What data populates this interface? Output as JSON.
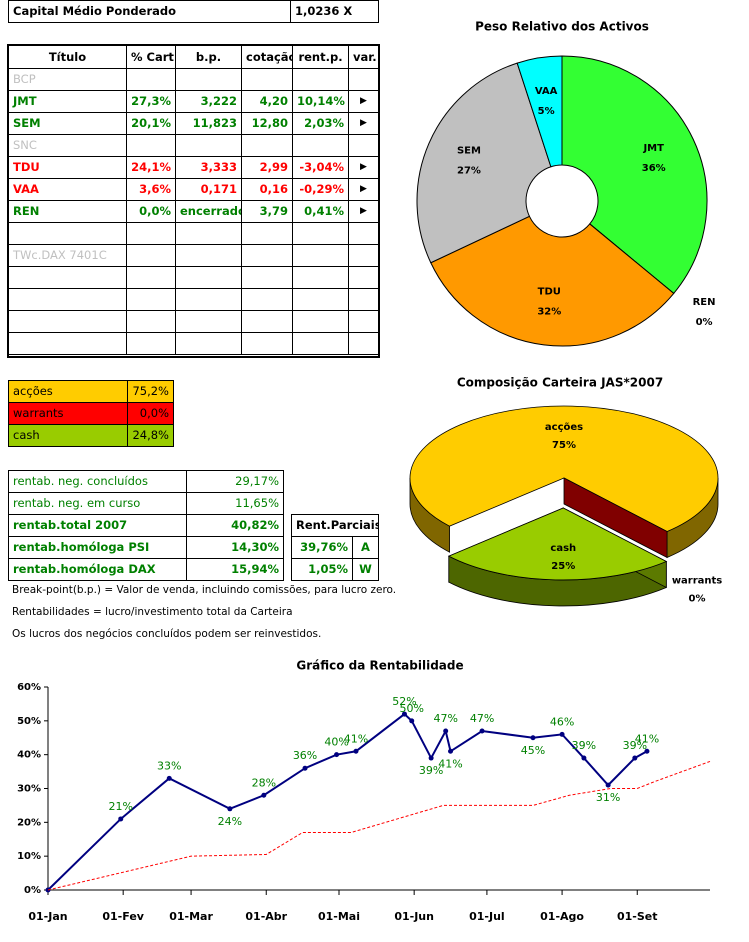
{
  "header": {
    "label": "Capital Médio Ponderado",
    "value": "1,0236 X"
  },
  "portfolio_table": {
    "columns": [
      "Título",
      "% Cart",
      "b.p.",
      "cotação",
      "rent.p.",
      "var."
    ],
    "rows": [
      {
        "cells": [
          "BCP"
        ],
        "color": "#c0c0c0"
      },
      {
        "cells": [
          "JMT",
          "27,3%",
          "3,222",
          "4,20",
          "10,14%",
          "▶"
        ],
        "color": "#008000"
      },
      {
        "cells": [
          "SEM",
          "20,1%",
          "11,823",
          "12,80",
          "2,03%",
          "▶"
        ],
        "color": "#008000"
      },
      {
        "cells": [
          "SNC"
        ],
        "color": "#c0c0c0"
      },
      {
        "cells": [
          "TDU",
          "24,1%",
          "3,333",
          "2,99",
          "-3,04%",
          "▶"
        ],
        "color": "#ff0000"
      },
      {
        "cells": [
          "VAA",
          "3,6%",
          "0,171",
          "0,16",
          "-0,29%",
          "▶"
        ],
        "color": "#ff0000"
      },
      {
        "cells": [
          "REN",
          "0,0%",
          "encerrado",
          "3,79",
          "0,41%",
          "▶"
        ],
        "color": "#008000"
      },
      {
        "cells": [
          "TWc.DAX 7401C"
        ],
        "color": "#c0c0c0"
      }
    ]
  },
  "allocation_table": {
    "rows": [
      {
        "cells": [
          "acções",
          "75,2%"
        ],
        "color": "#ffcc00"
      },
      {
        "cells": [
          "warrants",
          "0,0%"
        ],
        "color": "#ff0000"
      },
      {
        "cells": [
          "cash",
          "24,8%"
        ],
        "color": "#99cc00"
      }
    ]
  },
  "returns_table": {
    "color": "#008000",
    "rows": [
      {
        "cells": [
          "rentab. neg. concluídos",
          "29,17%"
        ],
        "bold": false
      },
      {
        "cells": [
          "rentab. neg. em curso",
          "11,65%"
        ],
        "bold": false
      },
      {
        "cells": [
          "rentab.total 2007",
          "40,82%"
        ],
        "bold": true
      },
      {
        "cells": [
          "rentab.homóloga PSI",
          "14,30%"
        ],
        "bold": true
      },
      {
        "cells": [
          "rentab.homóloga DAX",
          "15,94%"
        ],
        "bold": true
      }
    ]
  },
  "partial_returns_table": {
    "header": "Rent.Parciais",
    "color": "#008000",
    "rows": [
      [
        "39,76%",
        "A"
      ],
      [
        "1,05%",
        "W"
      ]
    ]
  },
  "notes": [
    "Break-point(b.p.) = Valor de venda, incluindo comissões, para lucro zero.",
    "Rentabilidades = lucro/investimento total da Carteira",
    "Os lucros dos negócios concluídos podem ser reinvestidos."
  ],
  "chart_data": [
    {
      "type": "donut",
      "title": "Peso Relativo dos Activos",
      "categories": [
        "JMT",
        "REN",
        "TDU",
        "SEM",
        "VAA"
      ],
      "values": [
        36,
        0,
        32,
        27,
        5
      ],
      "value_labels": [
        "36%",
        "0%",
        "32%",
        "27%",
        "5%"
      ],
      "colors": [
        "#33ff33",
        "#ffffff",
        "#ff9900",
        "#c0c0c0",
        "#00ffff"
      ]
    },
    {
      "type": "pie3d",
      "title": "Composição Carteira JAS*2007",
      "categories": [
        "acções",
        "warrants",
        "cash"
      ],
      "values": [
        75,
        0,
        25
      ],
      "value_labels": [
        "75%",
        "0%",
        "25%"
      ],
      "colors": [
        "#ffcc00",
        "#800000",
        "#99cc00"
      ],
      "exploded": [
        "cash"
      ]
    },
    {
      "type": "line",
      "title": "Gráfico da Rentabilidade",
      "xlim": [
        0,
        273
      ],
      "xticks": [
        {
          "value": 0,
          "label": "01-Jan"
        },
        {
          "value": 31,
          "label": "01-Fev"
        },
        {
          "value": 59,
          "label": "01-Mar"
        },
        {
          "value": 90,
          "label": "01-Abr"
        },
        {
          "value": 120,
          "label": "01-Mai"
        },
        {
          "value": 151,
          "label": "01-Jun"
        },
        {
          "value": 181,
          "label": "01-Jul"
        },
        {
          "value": 212,
          "label": "01-Ago"
        },
        {
          "value": 243,
          "label": "01-Set"
        }
      ],
      "ylim": [
        0,
        60
      ],
      "yticks": [
        {
          "value": 0,
          "label": "0%"
        },
        {
          "value": 10,
          "label": "10%"
        },
        {
          "value": 20,
          "label": "20%"
        },
        {
          "value": 30,
          "label": "30%"
        },
        {
          "value": 40,
          "label": "40%"
        },
        {
          "value": 50,
          "label": "50%"
        },
        {
          "value": 60,
          "label": "60%"
        }
      ],
      "series": [
        {
          "color": "#000080",
          "label_color": "#008000",
          "x": [
            0,
            30,
            50,
            75,
            89,
            106,
            119,
            127,
            147,
            150,
            158,
            164,
            166,
            179,
            200,
            212,
            221,
            231,
            242,
            247
          ],
          "values": [
            0,
            21,
            33,
            24,
            28,
            36,
            40,
            41,
            52,
            50,
            39,
            47,
            41,
            47,
            45,
            46,
            39,
            31,
            39,
            41
          ],
          "value_labels": [
            null,
            "21%",
            "33%",
            "24%",
            "28%",
            "36%",
            "40%",
            "41%",
            "52%",
            "50%",
            "39%",
            "47%",
            "41%",
            "47%",
            "45%",
            "46%",
            "39%",
            "31%",
            "39%",
            "41%"
          ]
        },
        {
          "color": "#ff0000",
          "dashed": true,
          "x": [
            0,
            59,
            90,
            105,
            125,
            163,
            200,
            215,
            232,
            243,
            250,
            273
          ],
          "values": [
            0,
            10,
            10.5,
            17,
            17,
            25,
            25,
            28,
            30,
            30,
            32,
            38
          ]
        }
      ]
    }
  ]
}
